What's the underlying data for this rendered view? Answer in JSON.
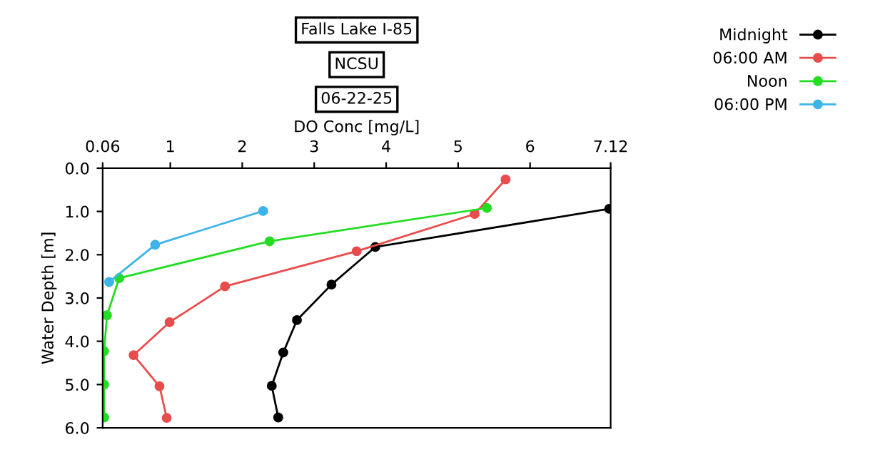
{
  "chart_data": {
    "type": "line",
    "title": "Falls Lake I-85",
    "subtitle": "NCSU",
    "annotations": [
      "06-22-25"
    ],
    "xlabel": "DO Conc [mg/L]",
    "ylabel": "Water Depth [m]",
    "xlim": [
      0.06,
      7.12
    ],
    "xticks": [
      0.06,
      1,
      2,
      3,
      4,
      5,
      6,
      7.12
    ],
    "ylim": [
      6.0,
      0.0
    ],
    "yticks": [
      {
        "value": 0,
        "label": "0.0"
      },
      {
        "value": 1,
        "label": "1.0"
      },
      {
        "value": 2,
        "label": "2.0"
      },
      {
        "value": 3,
        "label": "3.0"
      },
      {
        "value": 4,
        "label": "4.0"
      },
      {
        "value": 5,
        "label": "5.0"
      },
      {
        "value": 6,
        "label": "6.0"
      }
    ],
    "marker": "circle",
    "line_style": "solid",
    "grid": false,
    "legend": "top right",
    "series": [
      {
        "name": "Midnight",
        "color": "#000000",
        "x": [
          7.1,
          3.85,
          3.24,
          2.76,
          2.57,
          2.41,
          2.5
        ],
        "values": [
          0.94,
          1.82,
          2.69,
          3.51,
          4.26,
          5.03,
          5.76
        ]
      },
      {
        "name": "06:00 AM",
        "color": "#e84c4c",
        "x": [
          5.66,
          5.23,
          3.59,
          1.76,
          0.99,
          0.49,
          0.85,
          0.95
        ],
        "values": [
          0.26,
          1.06,
          1.92,
          2.73,
          3.56,
          4.32,
          5.04,
          5.77
        ]
      },
      {
        "name": "Noon",
        "color": "#22dd22",
        "x": [
          5.4,
          2.38,
          0.29,
          0.12,
          0.08,
          0.08,
          0.08
        ],
        "values": [
          0.92,
          1.69,
          2.54,
          3.4,
          4.23,
          5.0,
          5.76
        ]
      },
      {
        "name": "06:00 PM",
        "color": "#3cb4ea",
        "x": [
          2.29,
          0.79,
          0.15
        ],
        "values": [
          0.99,
          1.77,
          2.63
        ]
      }
    ]
  }
}
